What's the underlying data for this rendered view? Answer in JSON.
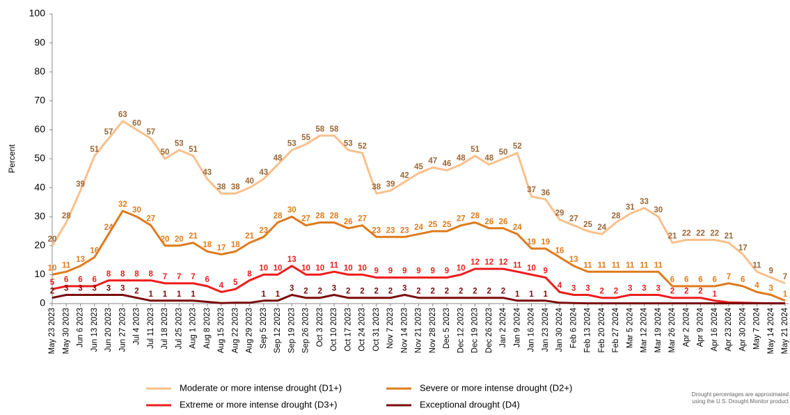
{
  "chart_data": {
    "type": "line",
    "y_label": "Percent",
    "ylim": [
      0,
      100
    ],
    "yticks": [
      0,
      10,
      20,
      30,
      40,
      50,
      60,
      70,
      80,
      90,
      100
    ],
    "categories": [
      "May 23 2023",
      "May 30 2023",
      "Jun 6 2023",
      "Jun 13 2023",
      "Jun 20 2023",
      "Jun 27 2023",
      "Jul 4 2023",
      "Jul 11 2023",
      "Jul 18 2023",
      "Jul 25 2023",
      "Aug 1 2023",
      "Aug 8 2023",
      "Aug 15 2023",
      "Aug 22 2023",
      "Aug 29 2023",
      "Sep 5 2023",
      "Sep 12 2023",
      "Sep 19 2023",
      "Sep 26 2023",
      "Oct 3 2023",
      "Oct 10 2023",
      "Oct 17 2023",
      "Oct 24 2023",
      "Oct 31 2023",
      "Nov 7 2023",
      "Nov 14 2023",
      "Nov 21 2023",
      "Nov 28 2023",
      "Dec 5 2023",
      "Dec 12 2023",
      "Dec 19 2023",
      "Dec 26 2023",
      "Jan 2 2024",
      "Jan 9 2024",
      "Jan 16 2024",
      "Jan 23 2024",
      "Jan 30 2024",
      "Feb 6 2024",
      "Feb 13 2024",
      "Feb 20 2024",
      "Feb 27 2024",
      "Mar 5 2024",
      "Mar 12 2024",
      "Mar 19 2024",
      "Mar 26 2024",
      "Apr 2 2024",
      "Apr 9 2024",
      "Apr 16 2024",
      "Apr 23 2024",
      "Apr 30 2024",
      "May 7 2024",
      "May 14 2024",
      "May 21 2024"
    ],
    "series": [
      {
        "name": "Moderate or more intense drought (D1+)",
        "color": "#f9c08c",
        "label_color": "#9a6736",
        "values": [
          20,
          28,
          39,
          51,
          57,
          63,
          60,
          57,
          50,
          53,
          51,
          43,
          38,
          38,
          40,
          43,
          48,
          53,
          55,
          58,
          58,
          53,
          52,
          38,
          39,
          42,
          45,
          47,
          46,
          48,
          51,
          48,
          50,
          52,
          37,
          36,
          29,
          27,
          25,
          24,
          28,
          31,
          33,
          30,
          21,
          22,
          22,
          22,
          21,
          17,
          11,
          9,
          7
        ]
      },
      {
        "name": "Severe or more intense drought (D2+)",
        "color": "#de7a1c",
        "label_color": "#e07b1a",
        "values": [
          10,
          11,
          13,
          16,
          24,
          32,
          30,
          27,
          20,
          20,
          21,
          18,
          17,
          18,
          21,
          23,
          28,
          30,
          27,
          28,
          28,
          26,
          27,
          23,
          23,
          23,
          24,
          25,
          25,
          27,
          28,
          26,
          26,
          24,
          19,
          19,
          16,
          13,
          11,
          11,
          11,
          11,
          11,
          11,
          6,
          6,
          6,
          6,
          7,
          6,
          4,
          3,
          1
        ]
      },
      {
        "name": "Extreme or more intense drought (D3+)",
        "color": "#ee1c1c",
        "label_color": "#ee1c1c",
        "values": [
          5,
          6,
          6,
          6,
          8,
          8,
          8,
          8,
          7,
          7,
          7,
          6,
          4,
          5,
          8,
          10,
          10,
          13,
          10,
          10,
          11,
          10,
          10,
          9,
          9,
          9,
          9,
          9,
          9,
          10,
          12,
          12,
          12,
          11,
          10,
          9,
          4,
          3,
          3,
          2,
          2,
          3,
          3,
          3,
          2,
          2,
          2,
          1,
          0.4,
          0.3,
          0.2,
          0.1,
          0.1
        ],
        "value_labels": [
          "5",
          "6",
          "6",
          "6",
          "8",
          "8",
          "8",
          "8",
          "7",
          "7",
          "7",
          "6",
          "4",
          "5",
          "8",
          "10",
          "10",
          "13",
          "10",
          "10",
          "11",
          "10",
          "10",
          "9",
          "9",
          "9",
          "9",
          "9",
          "9",
          "10",
          "12",
          "12",
          "12",
          "11",
          "10",
          "9",
          "4",
          "3",
          "3",
          "2",
          "2",
          "3",
          "3",
          "3",
          "2",
          "2",
          "2",
          "1",
          null,
          null,
          null,
          null,
          null
        ]
      },
      {
        "name": "Exceptional drought (D4)",
        "color": "#7a0c0c",
        "label_color": "#7a0c0c",
        "values": [
          2,
          3,
          3,
          3,
          3,
          3,
          2,
          1,
          1,
          1,
          1,
          0.6,
          0.2,
          0.3,
          0.3,
          1,
          1,
          3,
          2,
          2,
          3,
          2,
          2,
          2,
          2,
          3,
          2,
          2,
          2,
          2,
          2,
          2,
          2,
          1,
          1,
          1,
          0.3,
          0.2,
          0.1,
          0.1,
          0.1,
          0.1,
          0.1,
          0.1,
          0.1,
          0.1,
          0.1,
          0.1,
          0.1,
          0.1,
          0.1,
          0.1,
          0.1
        ],
        "value_labels": [
          "2",
          "3",
          "3",
          "3",
          "3",
          "3",
          "2",
          "1",
          "1",
          "1",
          "1",
          null,
          null,
          null,
          null,
          "1",
          "1",
          "3",
          "2",
          "2",
          "3",
          "2",
          "2",
          "2",
          "2",
          "3",
          "2",
          "2",
          "2",
          "2",
          "2",
          "2",
          "2",
          "1",
          "1",
          "1",
          null,
          null,
          null,
          null,
          null,
          null,
          null,
          null,
          null,
          null,
          null,
          null,
          null,
          null,
          null,
          null,
          null
        ]
      }
    ],
    "footnote": [
      "Drought percentages are approximated",
      "using the U.S. Drought Monitor product"
    ]
  }
}
